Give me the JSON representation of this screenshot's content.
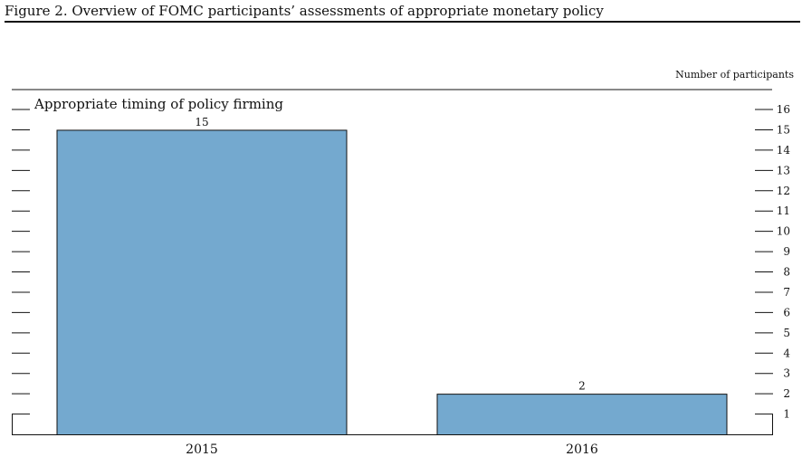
{
  "figure_title": "Figure 2. Overview of FOMC participants’ assessments of appropriate monetary policy",
  "chart_data": {
    "type": "bar",
    "title": "Appropriate timing of policy firming",
    "ylabel": "Number of participants",
    "xlabel": "",
    "categories": [
      "2015",
      "2016"
    ],
    "values": [
      15,
      2
    ],
    "data_labels": [
      "15",
      "2"
    ],
    "ylim": [
      0,
      16
    ],
    "yticks": [
      1,
      2,
      3,
      4,
      5,
      6,
      7,
      8,
      9,
      10,
      11,
      12,
      13,
      14,
      15,
      16
    ],
    "grid": false,
    "bar_color": "#74a9cf",
    "bar_edge_color": "#111111"
  }
}
